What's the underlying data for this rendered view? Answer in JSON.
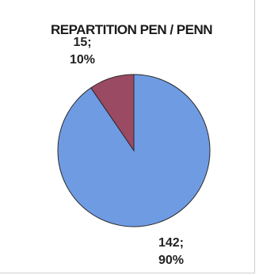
{
  "chart_data": {
    "type": "pie",
    "title": "REPARTITION PEN / PENN",
    "slices": [
      {
        "value": 142,
        "percent": "90%",
        "label_value": "142;",
        "color": "#6f9be3"
      },
      {
        "value": 15,
        "percent": "10%",
        "label_value": "15;",
        "color": "#9b4a63"
      }
    ]
  }
}
